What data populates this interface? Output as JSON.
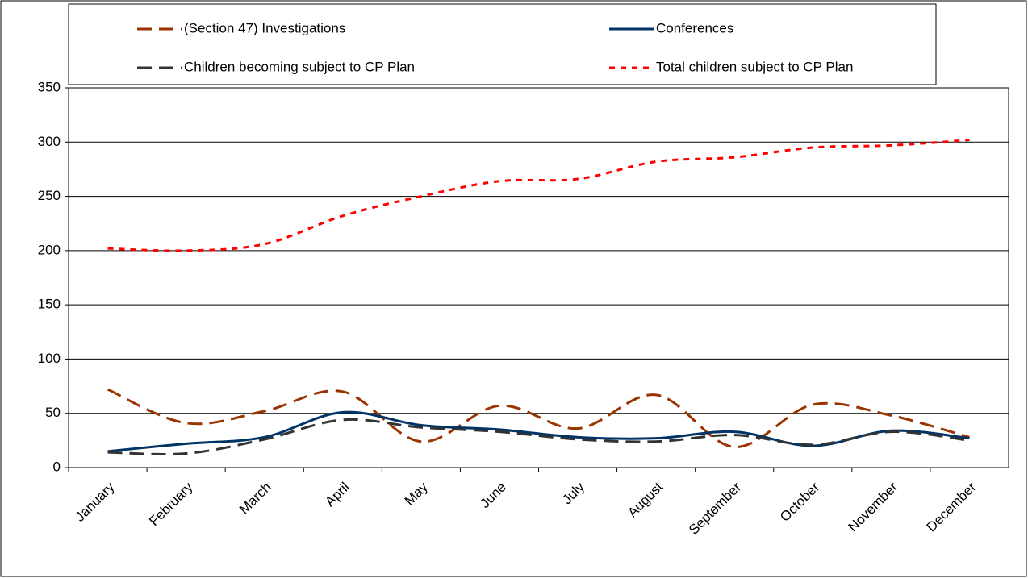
{
  "chart_data": {
    "type": "line",
    "categories": [
      "January",
      "February",
      "March",
      "April",
      "May",
      "June",
      "July",
      "August",
      "September",
      "October",
      "November",
      "December"
    ],
    "series": [
      {
        "name": "(Section 47) Investigations",
        "color": "#993300",
        "dash": "dashed",
        "values": [
          72,
          41,
          52,
          70,
          24,
          57,
          36,
          67,
          19,
          58,
          48,
          28
        ]
      },
      {
        "name": "Conferences",
        "color": "#003366",
        "dash": "solid",
        "values": [
          15,
          22,
          28,
          51,
          39,
          35,
          28,
          27,
          33,
          20,
          34,
          27
        ]
      },
      {
        "name": "Children becoming subject to CP Plan",
        "color": "#333333",
        "dash": "dashed",
        "values": [
          14,
          13,
          26,
          44,
          37,
          33,
          26,
          24,
          30,
          21,
          33,
          25
        ]
      },
      {
        "name": "Total children subject to CP Plan",
        "color": "#ff0000",
        "dash": "dotted",
        "values": [
          202,
          200,
          206,
          232,
          250,
          264,
          266,
          282,
          286,
          295,
          297,
          302
        ]
      }
    ],
    "ylim": [
      0,
      350
    ],
    "yticks": [
      0,
      50,
      100,
      150,
      200,
      250,
      300,
      350
    ],
    "grid": true,
    "legend": "top"
  }
}
